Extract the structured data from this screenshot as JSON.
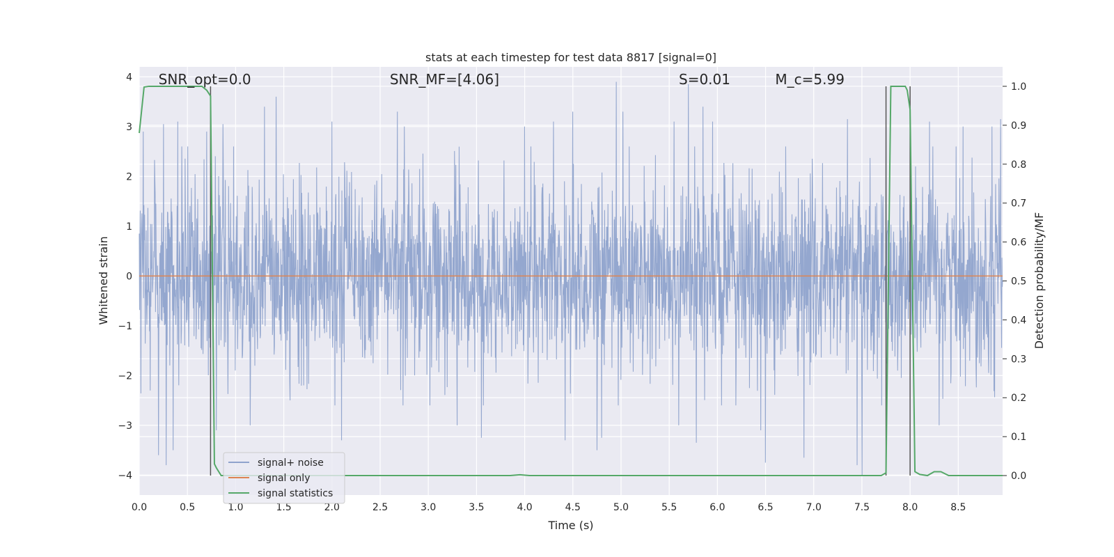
{
  "chart_data": {
    "type": "line",
    "title": "stats at each timestep for test data 8817 [signal=0]",
    "xlabel": "Time (s)",
    "ylabel": "Whitened strain",
    "y2label": "Detection probability/MF",
    "xlim": [
      0.0,
      8.96
    ],
    "ylim": [
      -4.4,
      4.2
    ],
    "y2lim": [
      -0.05,
      1.05
    ],
    "xticks": [
      0.0,
      0.5,
      1.0,
      1.5,
      2.0,
      2.5,
      3.0,
      3.5,
      4.0,
      4.5,
      5.0,
      5.5,
      6.0,
      6.5,
      7.0,
      7.5,
      8.0,
      8.5
    ],
    "xtick_labels": [
      "0.0",
      "0.5",
      "1.0",
      "1.5",
      "2.0",
      "2.5",
      "3.0",
      "3.5",
      "4.0",
      "4.5",
      "5.0",
      "5.5",
      "6.0",
      "6.5",
      "7.0",
      "7.5",
      "8.0",
      "8.5"
    ],
    "yticks": [
      -4,
      -3,
      -2,
      -1,
      0,
      1,
      2,
      3,
      4
    ],
    "ytick_labels": [
      "−4",
      "−3",
      "−2",
      "−1",
      "0",
      "1",
      "2",
      "3",
      "4"
    ],
    "y2ticks": [
      0.0,
      0.1,
      0.2,
      0.3,
      0.4,
      0.5,
      0.6,
      0.7,
      0.8,
      0.9,
      1.0
    ],
    "y2tick_labels": [
      "0.0",
      "0.1",
      "0.2",
      "0.3",
      "0.4",
      "0.5",
      "0.6",
      "0.7",
      "0.8",
      "0.9",
      "1.0"
    ],
    "grid": true,
    "legend_position": "lower-left",
    "annotations": [
      {
        "label": "SNR_opt=0.0",
        "x": 0.2,
        "y": 3.85
      },
      {
        "label": "SNR_MF=[4.06]",
        "x": 2.6,
        "y": 3.85
      },
      {
        "label": "S=0.01",
        "x": 5.6,
        "y": 3.85
      },
      {
        "label": "M_c=5.99",
        "x": 6.6,
        "y": 3.85
      }
    ],
    "vertical_markers": [
      0.74,
      7.75,
      8.0
    ],
    "series": [
      {
        "name": "signal+ noise",
        "color": "#8fa3cc",
        "kind": "noise",
        "amplitude_band": [
          -2.4,
          2.4
        ],
        "extreme_peaks": [
          {
            "x": 0.04,
            "y": 2.9
          },
          {
            "x": 0.2,
            "y": -3.6
          },
          {
            "x": 0.25,
            "y": 3.05
          },
          {
            "x": 0.28,
            "y": -3.8
          },
          {
            "x": 0.35,
            "y": -3.5
          },
          {
            "x": 0.4,
            "y": 3.1
          },
          {
            "x": 0.7,
            "y": 2.9
          },
          {
            "x": 0.8,
            "y": -3.1
          },
          {
            "x": 0.87,
            "y": 3.05
          },
          {
            "x": 1.15,
            "y": -3.0
          },
          {
            "x": 1.3,
            "y": 3.4
          },
          {
            "x": 1.42,
            "y": -3.4
          },
          {
            "x": 1.42,
            "y": 3.6
          },
          {
            "x": 2.0,
            "y": 3.1
          },
          {
            "x": 2.1,
            "y": -3.3
          },
          {
            "x": 2.68,
            "y": 3.3
          },
          {
            "x": 2.75,
            "y": 3.0
          },
          {
            "x": 3.3,
            "y": -3.0
          },
          {
            "x": 3.55,
            "y": -3.25
          },
          {
            "x": 4.0,
            "y": 3.0
          },
          {
            "x": 4.3,
            "y": 3.1
          },
          {
            "x": 4.42,
            "y": -3.3
          },
          {
            "x": 4.5,
            "y": 3.3
          },
          {
            "x": 4.8,
            "y": -3.25
          },
          {
            "x": 4.95,
            "y": 3.9
          },
          {
            "x": 4.75,
            "y": -3.5
          },
          {
            "x": 5.02,
            "y": 3.3
          },
          {
            "x": 5.55,
            "y": 3.1
          },
          {
            "x": 5.6,
            "y": -3.0
          },
          {
            "x": 5.7,
            "y": 3.85
          },
          {
            "x": 5.78,
            "y": -3.35
          },
          {
            "x": 5.85,
            "y": 3.4
          },
          {
            "x": 5.95,
            "y": 3.1
          },
          {
            "x": 6.45,
            "y": -3.1
          },
          {
            "x": 6.5,
            "y": -3.75
          },
          {
            "x": 6.9,
            "y": 3.1
          },
          {
            "x": 6.9,
            "y": -3.65
          },
          {
            "x": 7.35,
            "y": 3.15
          },
          {
            "x": 7.45,
            "y": -3.8
          },
          {
            "x": 7.5,
            "y": -4.0
          },
          {
            "x": 7.75,
            "y": 3.0
          },
          {
            "x": 8.2,
            "y": 3.1
          },
          {
            "x": 8.3,
            "y": -3.0
          },
          {
            "x": 8.55,
            "y": 3.0
          },
          {
            "x": 8.85,
            "y": 3.0
          },
          {
            "x": 8.94,
            "y": 3.15
          }
        ]
      },
      {
        "name": "signal only",
        "color": "#dd8452",
        "kind": "flat",
        "value": 0.0
      },
      {
        "name": "signal statistics",
        "color": "#55a868",
        "axis": "right",
        "x": [
          0.0,
          0.05,
          0.1,
          0.2,
          0.3,
          0.4,
          0.5,
          0.6,
          0.65,
          0.7,
          0.74,
          0.78,
          0.8,
          0.85,
          0.9,
          1.5,
          2.0,
          3.0,
          3.85,
          3.95,
          4.05,
          5.0,
          6.0,
          7.0,
          7.5,
          7.7,
          7.75,
          7.8,
          7.85,
          7.9,
          7.95,
          7.97,
          8.0,
          8.05,
          8.1,
          8.18,
          8.25,
          8.32,
          8.4,
          8.5,
          8.96
        ],
        "y": [
          0.88,
          0.998,
          1.0,
          1.0,
          1.0,
          1.0,
          1.0,
          1.0,
          1.0,
          0.99,
          0.975,
          0.03,
          0.02,
          0.0,
          0.0,
          0.0,
          0.0,
          0.0,
          0.0,
          0.002,
          0.0,
          0.0,
          0.0,
          0.0,
          0.0,
          0.0,
          0.007,
          1.0,
          1.0,
          1.0,
          1.0,
          0.99,
          0.94,
          0.01,
          0.003,
          0.0,
          0.01,
          0.01,
          0.0,
          0.0,
          0.0
        ]
      }
    ]
  }
}
